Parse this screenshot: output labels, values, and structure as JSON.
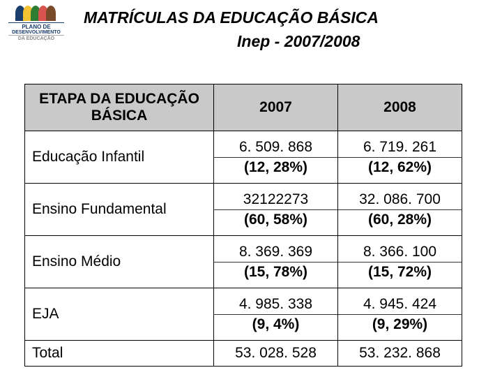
{
  "logo": {
    "line1": "PLANO DE",
    "line2": "DESENVOLVIMENTO",
    "line3": "DA EDUCAÇÃO",
    "fan_colors": [
      "#1a3d6d",
      "#f2c233",
      "#2e7d32",
      "#d9534f",
      "#7a4b2a"
    ]
  },
  "header": {
    "title": "MATRÍCULAS DA EDUCAÇÃO BÁSICA",
    "subtitle": "Inep - 2007/2008"
  },
  "table": {
    "columns": [
      "ETAPA DA EDUCAÇÃO BÁSICA",
      "2007",
      "2008"
    ],
    "rows": [
      {
        "label": "Educação Infantil",
        "y2007_v": "6. 509. 868",
        "y2007_p": "(12, 28%)",
        "y2008_v": "6. 719. 261",
        "y2008_p": "(12, 62%)"
      },
      {
        "label": "Ensino Fundamental",
        "y2007_v": "32122273",
        "y2007_p": "(60, 58%)",
        "y2008_v": "32. 086. 700",
        "y2008_p": "(60, 28%)"
      },
      {
        "label": "Ensino Médio",
        "y2007_v": "8. 369. 369",
        "y2007_p": "(15, 78%)",
        "y2008_v": "8. 366. 100",
        "y2008_p": "(15, 72%)"
      },
      {
        "label": "EJA",
        "y2007_v": "4. 985. 338",
        "y2007_p": "(9, 4%)",
        "y2008_v": "4. 945. 424",
        "y2008_p": "(9, 29%)"
      }
    ],
    "total": {
      "label": "Total",
      "y2007": "53. 028. 528",
      "y2008": "53. 232. 868"
    }
  },
  "style": {
    "header_bg": "#c9c9c9",
    "border_color": "#000000",
    "page_bg": "#ffffff",
    "title_color": "#000000",
    "font_family": "Arial",
    "title_fontsize": 23,
    "table_fontsize": 21
  }
}
